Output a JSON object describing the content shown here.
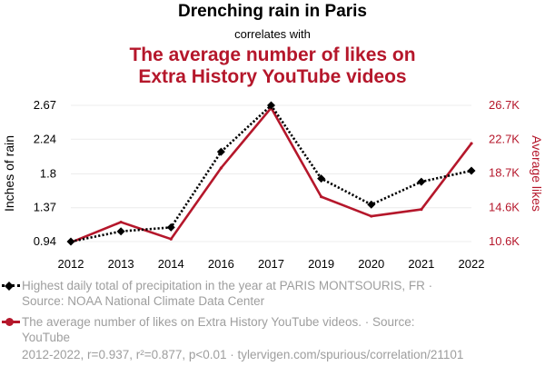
{
  "header": {
    "title": "Drenching rain in Paris",
    "connector": "correlates with",
    "title2_line1": "The average number of likes on",
    "title2_line2": "Extra History YouTube videos"
  },
  "colors": {
    "series1": "#000000",
    "series2": "#b5172b",
    "grid": "#ececec",
    "muted": "#9e9e9e"
  },
  "chart_data": {
    "type": "line",
    "x": [
      "2012",
      "2013",
      "2014",
      "2016",
      "2017",
      "2019",
      "2020",
      "2021",
      "2022"
    ],
    "series": [
      {
        "name": "Highest daily total of precipitation in the year at PARIS MONTSOURIS, FR",
        "axis": "left",
        "style": "dotted",
        "marker": "diamond",
        "values": [
          0.94,
          1.07,
          1.12,
          2.08,
          2.67,
          1.74,
          1.41,
          1.7,
          1.84
        ]
      },
      {
        "name": "The average number of likes on Extra History YouTube videos",
        "axis": "right",
        "style": "solid",
        "marker": "none",
        "values": [
          10500,
          12900,
          10900,
          19300,
          26400,
          15900,
          13600,
          14400,
          22200
        ]
      }
    ],
    "y_left": {
      "label": "Inches of rain",
      "ticks": [
        "0.94",
        "1.37",
        "1.8",
        "2.24",
        "2.67"
      ],
      "tick_values": [
        0.94,
        1.37,
        1.8,
        2.24,
        2.67
      ],
      "range": [
        0.94,
        2.67
      ]
    },
    "y_right": {
      "label": "Average likes",
      "ticks": [
        "10.6K",
        "14.6K",
        "18.7K",
        "22.7K",
        "26.7K"
      ],
      "tick_values": [
        10600,
        14600,
        18700,
        22700,
        26700
      ],
      "range": [
        10600,
        26700
      ]
    },
    "grid": true,
    "legend_position": "bottom"
  },
  "legend": {
    "item1": "Highest daily total of precipitation in the year at PARIS MONTSOURIS, FR · Source: NOAA National Climate Data Center",
    "item2": "The average number of likes on Extra History YouTube videos. · Source: YouTube"
  },
  "footer": "2012-2022, r=0.937, r²=0.877, p<0.01 · tylervigen.com/spurious/correlation/21101"
}
